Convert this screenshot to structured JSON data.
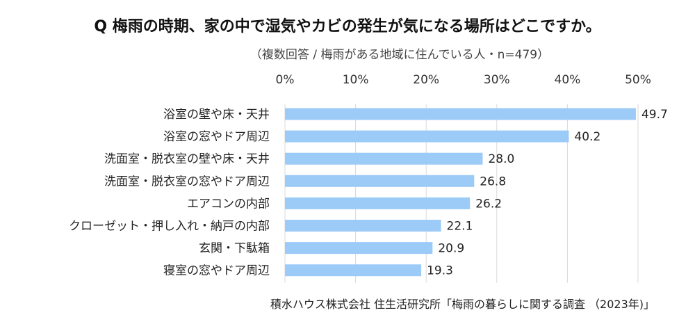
{
  "title": "Q 梅雨の時期、家の中で湿気やカビの発生が気になる場所はどこですか。",
  "subtitle": "（複数回答 / 梅雨がある地域に住んでいる人・n=479）",
  "source": "積水ハウス株式会社 住生活研究所「梅雨の暮らしに関する調査 （2023年)」",
  "colors": {
    "bar": "#9dcbf7",
    "grid": "#d9d9d9",
    "text": "#222222"
  },
  "chart_data": {
    "type": "bar",
    "orientation": "horizontal",
    "categories": [
      "浴室の壁や床・天井",
      "浴室の窓やドア周辺",
      "洗面室・脱衣室の壁や床・天井",
      "洗面室・脱衣室の窓やドア周辺",
      "エアコンの内部",
      "クローゼット・押し入れ・納戸の内部",
      "玄関・下駄箱",
      "寝室の窓やドア周辺"
    ],
    "values": [
      49.7,
      40.2,
      28.0,
      26.8,
      26.2,
      22.1,
      20.9,
      19.3
    ],
    "value_labels": [
      "49.7",
      "40.2",
      "28.0",
      "26.8",
      "26.2",
      "22.1",
      "20.9",
      "19.3"
    ],
    "xlim": [
      0,
      50
    ],
    "ticks": [
      0,
      10,
      20,
      30,
      40,
      50
    ],
    "tick_labels": [
      "0%",
      "10%",
      "20%",
      "30%",
      "40%",
      "50%"
    ],
    "axis_position": "top",
    "grid": true
  }
}
